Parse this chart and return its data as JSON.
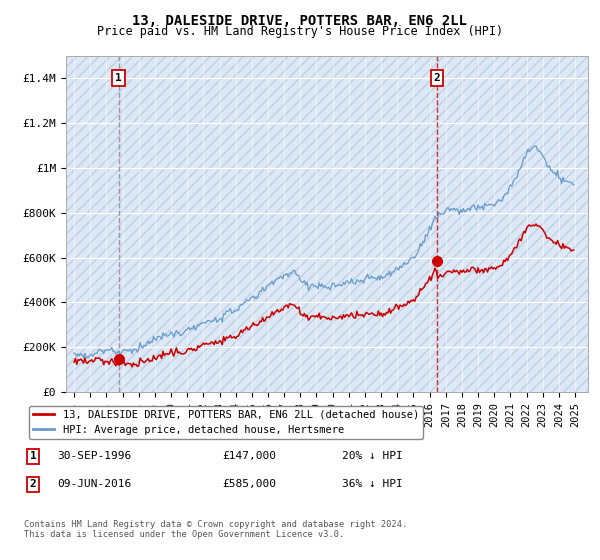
{
  "title": "13, DALESIDE DRIVE, POTTERS BAR, EN6 2LL",
  "subtitle": "Price paid vs. HM Land Registry's House Price Index (HPI)",
  "legend_line1": "13, DALESIDE DRIVE, POTTERS BAR, EN6 2LL (detached house)",
  "legend_line2": "HPI: Average price, detached house, Hertsmere",
  "annotation1_label": "1",
  "annotation1_date": "30-SEP-1996",
  "annotation1_price": "£147,000",
  "annotation1_hpi": "20% ↓ HPI",
  "annotation1_year": 1996.75,
  "annotation1_value": 147000,
  "annotation2_label": "2",
  "annotation2_date": "09-JUN-2016",
  "annotation2_price": "£585,000",
  "annotation2_hpi": "36% ↓ HPI",
  "annotation2_year": 2016.44,
  "annotation2_value": 585000,
  "ylabel_ticks": [
    "£0",
    "£200K",
    "£400K",
    "£600K",
    "£800K",
    "£1M",
    "£1.2M",
    "£1.4M"
  ],
  "ytick_values": [
    0,
    200000,
    400000,
    600000,
    800000,
    1000000,
    1200000,
    1400000
  ],
  "ylim": [
    0,
    1500000
  ],
  "xlim_start": 1993.5,
  "xlim_end": 2025.8,
  "plot_bg": "#dce8f5",
  "hatch_color": "#c0d0e4",
  "red_line_color": "#cc0000",
  "blue_line_color": "#6699cc",
  "ann1_vline_color": "#888888",
  "ann2_vline_color": "#cc0000",
  "footer_text": "Contains HM Land Registry data © Crown copyright and database right 2024.\nThis data is licensed under the Open Government Licence v3.0.",
  "xtick_years": [
    1994,
    1995,
    1996,
    1997,
    1998,
    1999,
    2000,
    2001,
    2002,
    2003,
    2004,
    2005,
    2006,
    2007,
    2008,
    2009,
    2010,
    2011,
    2012,
    2013,
    2014,
    2015,
    2016,
    2017,
    2018,
    2019,
    2020,
    2021,
    2022,
    2023,
    2024,
    2025
  ]
}
